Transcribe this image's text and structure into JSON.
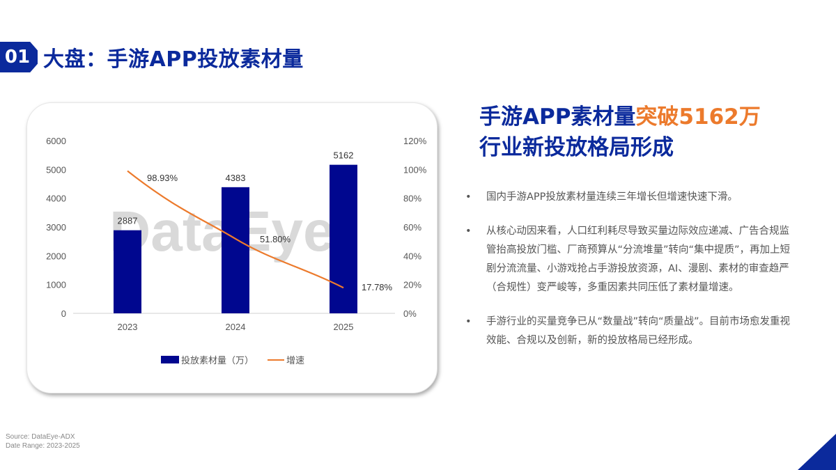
{
  "header": {
    "badge": "01",
    "title": "大盘：手游APP投放素材量"
  },
  "side": {
    "heading_line1_main": "手游APP素材量",
    "heading_line1_accent": "突破5162万",
    "heading_line2": "行业新投放格局形成",
    "bullet_glyph": "•",
    "bullets": [
      "国内手游APP投放素材量连续三年增长但增速快速下滑。",
      "从核心动因来看，人口红利耗尽导致买量边际效应递减、广告合规监管抬高投放门槛、厂商预算从“分流堆量”转向“集中提质”，再加上短剧分流流量、小游戏抢占手游投放资源，AI、漫剧、素材的审查趋严（合规性）变严峻等，多重因素共同压低了素材量增速。",
      "手游行业的买量竞争已从“数量战”转向“质量战”。目前市场愈发重视效能、合规以及创新，新的投放格局已经形成。"
    ]
  },
  "footer": {
    "source": "Source: DataEye-ADX",
    "date_range": "Date Range:  2023-2025"
  },
  "colors": {
    "brand": "#0b2a9c",
    "bar": "#00078f",
    "line": "#ec7a2c",
    "accent": "#ec7a2c"
  },
  "watermark": "DataEye",
  "chart_data": {
    "type": "bar+line",
    "categories": [
      "2023",
      "2024",
      "2025"
    ],
    "series": [
      {
        "name": "投放素材量（万）",
        "type": "bar",
        "axis": "left",
        "values": [
          2887,
          4383,
          5162
        ],
        "labels": [
          "2887",
          "4383",
          "5162"
        ]
      },
      {
        "name": "增速",
        "type": "line",
        "axis": "right",
        "values": [
          98.93,
          51.8,
          17.78
        ],
        "labels": [
          "98.93%",
          "51.80%",
          "17.78%"
        ]
      }
    ],
    "left_axis": {
      "ticks": [
        "0",
        "1000",
        "2000",
        "3000",
        "4000",
        "5000",
        "6000"
      ],
      "range": [
        0,
        6000
      ]
    },
    "right_axis": {
      "ticks": [
        "0%",
        "20%",
        "40%",
        "60%",
        "80%",
        "100%",
        "120%"
      ],
      "range": [
        0,
        120
      ]
    },
    "legend": {
      "position": "bottom",
      "entries": [
        "投放素材量（万）",
        "增速"
      ]
    },
    "grid": false,
    "title": "",
    "xlabel": "",
    "ylabel": ""
  }
}
